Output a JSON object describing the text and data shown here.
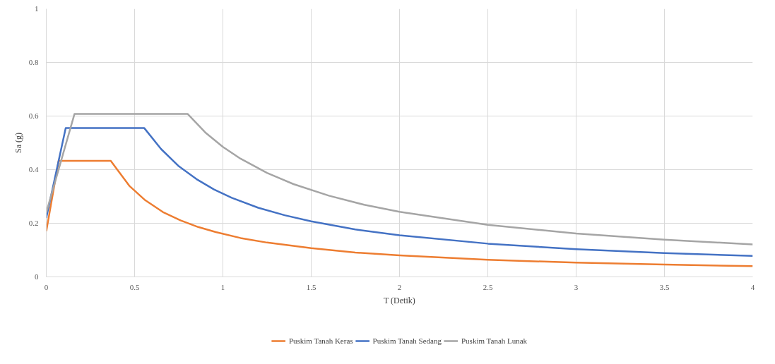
{
  "chart_data": {
    "type": "line",
    "xlabel": "T (Detik)",
    "ylabel": "Sa (g)",
    "xlim": [
      0,
      4
    ],
    "ylim": [
      0,
      1
    ],
    "xticks": [
      0,
      0.5,
      1,
      1.5,
      2,
      2.5,
      3,
      3.5,
      4
    ],
    "yticks": [
      0,
      0.2,
      0.4,
      0.6,
      0.8,
      1
    ],
    "grid": true,
    "legend": "bottom",
    "marker": "none",
    "line_style": "solid",
    "series": [
      {
        "name": "Puskim Tanah Keras",
        "color": "#ed7d31",
        "x": [
          0,
          0.07,
          0.365,
          0.47,
          0.56,
          0.66,
          0.76,
          0.86,
          0.96,
          1.1,
          1.25,
          1.5,
          1.75,
          2,
          2.5,
          3,
          3.5,
          4
        ],
        "values": [
          0.17,
          0.433,
          0.433,
          0.34,
          0.286,
          0.242,
          0.211,
          0.186,
          0.167,
          0.145,
          0.128,
          0.107,
          0.091,
          0.08,
          0.064,
          0.053,
          0.046,
          0.04
        ]
      },
      {
        "name": "Puskim Tanah Sedang",
        "color": "#4472c4",
        "x": [
          0,
          0.11,
          0.555,
          0.65,
          0.75,
          0.85,
          0.95,
          1.05,
          1.2,
          1.35,
          1.5,
          1.75,
          2,
          2.5,
          3,
          3.5,
          4
        ],
        "values": [
          0.22,
          0.555,
          0.555,
          0.477,
          0.413,
          0.365,
          0.326,
          0.295,
          0.258,
          0.23,
          0.207,
          0.177,
          0.155,
          0.124,
          0.103,
          0.089,
          0.078
        ]
      },
      {
        "name": "Puskim Tanah Lunak",
        "color": "#a5a5a5",
        "x": [
          0,
          0.16,
          0.8,
          0.9,
          1,
          1.1,
          1.25,
          1.4,
          1.6,
          1.8,
          2,
          2.5,
          3,
          3.5,
          4
        ],
        "values": [
          0.24,
          0.608,
          0.608,
          0.539,
          0.485,
          0.441,
          0.388,
          0.346,
          0.303,
          0.269,
          0.243,
          0.194,
          0.162,
          0.139,
          0.121
        ]
      }
    ]
  }
}
